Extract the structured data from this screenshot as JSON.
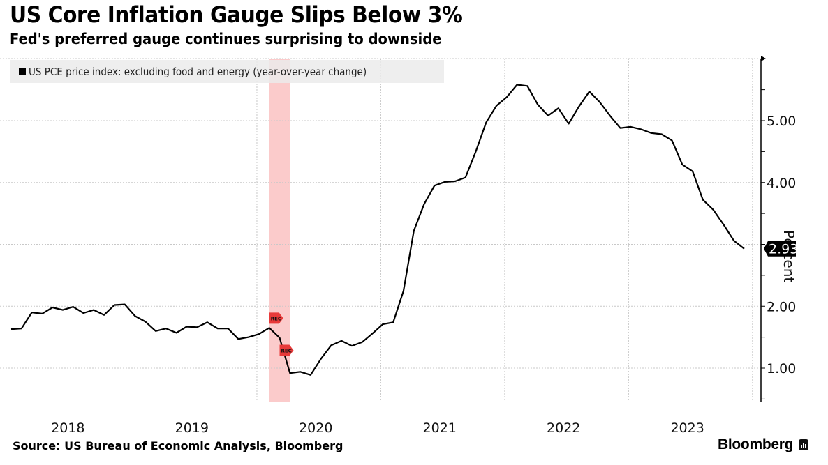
{
  "chart_data": {
    "type": "line",
    "title": "US Core Inflation Gauge Slips Below 3%",
    "subtitle": "Fed's preferred gauge continues surprising to downside",
    "xlabel": "",
    "ylabel": "Percent",
    "x_start": "2018-01",
    "x_end": "2023-12",
    "x_frequency": "monthly",
    "x_tick_labels": [
      "2018",
      "2019",
      "2020",
      "2021",
      "2022",
      "2023"
    ],
    "y_tick_labels": [
      "1.00",
      "2.00",
      "4.00",
      "5.00"
    ],
    "y_ticks": [
      1,
      2,
      3,
      4,
      5
    ],
    "ylim": [
      0.47,
      6.0
    ],
    "grid": true,
    "legend_position": "top-left",
    "series": [
      {
        "name": "US PCE price index: excluding food and energy (year-over-year change)",
        "color": "#000000",
        "values": [
          1.63,
          1.64,
          1.9,
          1.88,
          1.98,
          1.94,
          1.99,
          1.89,
          1.94,
          1.86,
          2.02,
          2.03,
          1.84,
          1.75,
          1.6,
          1.64,
          1.57,
          1.67,
          1.66,
          1.74,
          1.64,
          1.64,
          1.47,
          1.5,
          1.55,
          1.65,
          1.49,
          0.92,
          0.94,
          0.89,
          1.15,
          1.37,
          1.44,
          1.36,
          1.42,
          1.56,
          1.71,
          1.74,
          2.25,
          3.22,
          3.65,
          3.95,
          4.01,
          4.02,
          4.08,
          4.5,
          4.97,
          5.24,
          5.38,
          5.58,
          5.56,
          5.26,
          5.08,
          5.2,
          4.95,
          5.23,
          5.47,
          5.3,
          5.08,
          4.88,
          4.9,
          4.86,
          4.8,
          4.78,
          4.68,
          4.29,
          4.18,
          3.72,
          3.56,
          3.32,
          3.06,
          2.93
        ]
      }
    ],
    "last_value_label": "2.93",
    "recession": {
      "start": "2020-02",
      "end": "2020-04",
      "flag_label": "REC",
      "color": "#f8a0a0"
    }
  },
  "footer": {
    "source": "Source: US Bureau of Economic Analysis, Bloomberg",
    "brand": "Bloomberg"
  }
}
